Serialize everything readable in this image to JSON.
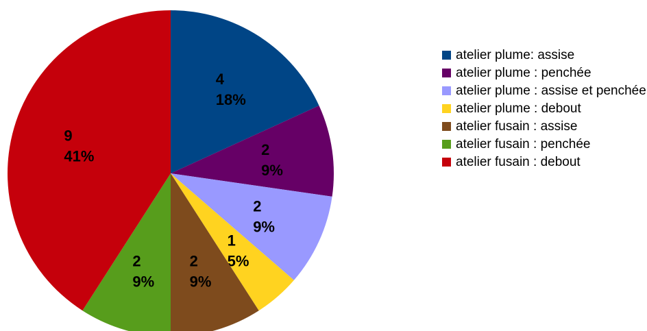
{
  "chart_data": {
    "type": "pie",
    "title": "",
    "start_angle_deg": 0,
    "direction": "clockwise",
    "legend_position": "right",
    "slices": [
      {
        "name": "atelier plume: assise",
        "value": 4,
        "percent_label": "18%",
        "color": "#004586"
      },
      {
        "name": "atelier plume : penchée",
        "value": 2,
        "percent_label": "9%",
        "color": "#660066"
      },
      {
        "name": "atelier plume : assise et penchée",
        "value": 2,
        "percent_label": "9%",
        "color": "#9999ff"
      },
      {
        "name": "atelier plume : debout",
        "value": 1,
        "percent_label": "5%",
        "color": "#ffd320"
      },
      {
        "name": "atelier fusain : assise",
        "value": 2,
        "percent_label": "9%",
        "color": "#7e4b1d"
      },
      {
        "name": "atelier fusain : penchée",
        "value": 2,
        "percent_label": "9%",
        "color": "#579d1c"
      },
      {
        "name": "atelier fusain : debout",
        "value": 9,
        "percent_label": "41%",
        "color": "#c5000b"
      }
    ]
  }
}
